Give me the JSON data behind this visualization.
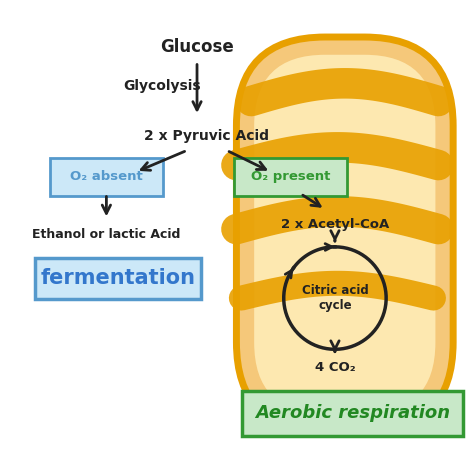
{
  "bg_color": "#ffffff",
  "mito_outer_color": "#e8a000",
  "mito_fill_color": "#f5c87a",
  "mito_inner_fill": "#fde8b0",
  "cristae_color": "#e8a000",
  "box_o2_absent_facecolor": "#cce8f8",
  "box_o2_absent_edgecolor": "#5599cc",
  "box_o2_present_facecolor": "#c8e8c8",
  "box_o2_present_edgecolor": "#339933",
  "box_ferm_facecolor": "#cce8f8",
  "box_ferm_edgecolor": "#5599cc",
  "box_aerob_facecolor": "#c8e8c8",
  "box_aerob_edgecolor": "#339933",
  "arrow_color": "#222222",
  "text_color": "#222222",
  "cycle_circle_color": "#222222",
  "glucose_text": "Glucose",
  "glycolysis_text": "Glycolysis",
  "pyruvic_text": "2 x Pyruvic Acid",
  "o2_absent_text": "O₂ absent",
  "o2_present_text": "O₂ present",
  "ethanol_text": "Ethanol or lactic Acid",
  "fermentation_text": "fermentation",
  "acetylcoa_text": "2 x Acetyl-CoA",
  "citric_text": "Citric acid\ncycle",
  "co2_text": "4 CO₂",
  "aerobic_text": "Aerobic respiration",
  "ferm_text_color": "#3377cc",
  "aerob_text_color": "#228822"
}
